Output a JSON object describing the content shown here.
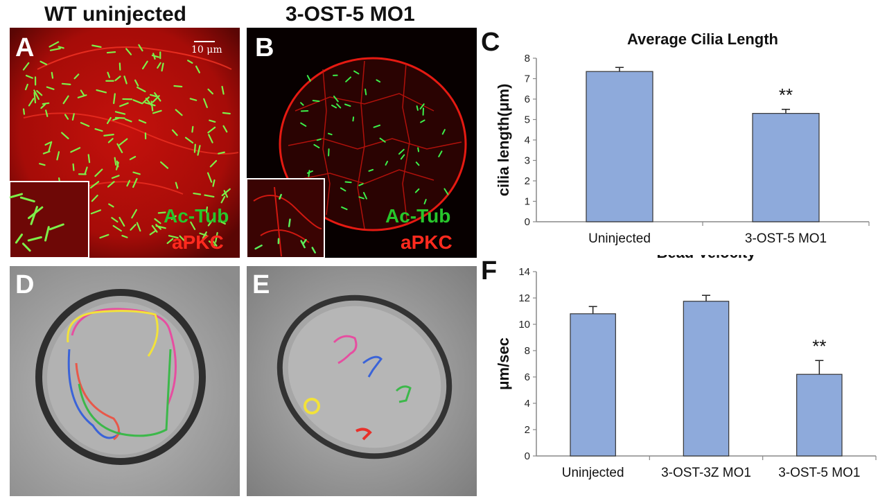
{
  "headers": {
    "wt": "WT uninjected",
    "mo": "3-OST-5 MO1"
  },
  "panel_labels": {
    "a": "A",
    "b": "B",
    "c": "C",
    "d": "D",
    "e": "E",
    "f": "F"
  },
  "scale_bar": "10 μm",
  "legend": {
    "green": "Ac-Tub",
    "red": "aPKC"
  },
  "chart_data": [
    {
      "type": "bar",
      "panel": "C",
      "title": "Average Cilia Length",
      "ylabel": "cilia length(μm)",
      "categories": [
        "Uninjected",
        "3-OST-5 MO1"
      ],
      "values": [
        7.35,
        5.3
      ],
      "errors": [
        0.2,
        0.2
      ],
      "significance": [
        "",
        "**"
      ],
      "ylim": [
        0,
        8
      ],
      "yticks": [
        0,
        1,
        2,
        3,
        4,
        5,
        6,
        7,
        8
      ],
      "bar_color": "#8eaadb"
    },
    {
      "type": "bar",
      "panel": "F",
      "title": "Bead Velocity",
      "ylabel": "μm/sec",
      "categories": [
        "Uninjected",
        "3-OST-3Z MO1",
        "3-OST-5 MO1"
      ],
      "values": [
        10.8,
        11.75,
        6.2
      ],
      "errors": [
        0.55,
        0.45,
        1.05
      ],
      "significance": [
        "",
        "",
        "**"
      ],
      "ylim": [
        0,
        14
      ],
      "yticks": [
        0,
        2,
        4,
        6,
        8,
        10,
        12,
        14
      ],
      "bar_color": "#8eaadb"
    }
  ]
}
